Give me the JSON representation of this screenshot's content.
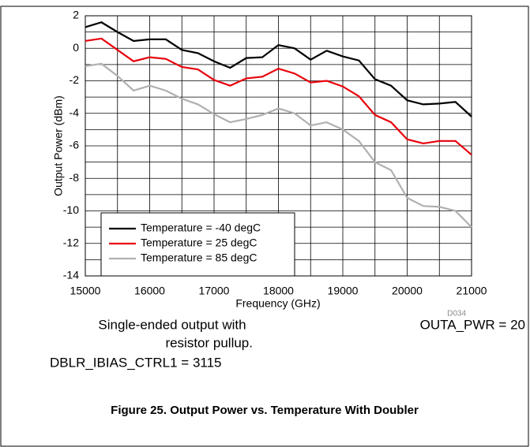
{
  "chart_data": {
    "type": "line",
    "xlabel": "Frequency (GHz)",
    "ylabel": "Output Power (dBm)",
    "x": [
      15000,
      15250,
      15500,
      15750,
      16000,
      16250,
      16500,
      16750,
      17000,
      17250,
      17500,
      17750,
      18000,
      18250,
      18500,
      18750,
      19000,
      19250,
      19500,
      19750,
      20000,
      20250,
      20500,
      20750,
      21000
    ],
    "series": [
      {
        "name": "Temperature = -40 degC",
        "color": "#000000",
        "values": [
          1.3,
          1.6,
          1.0,
          0.45,
          0.55,
          0.55,
          -0.1,
          -0.3,
          -0.8,
          -1.2,
          -0.6,
          -0.55,
          0.2,
          0.0,
          -0.7,
          -0.15,
          -0.5,
          -0.75,
          -1.9,
          -2.3,
          -3.2,
          -3.45,
          -3.4,
          -3.3,
          -4.2
        ]
      },
      {
        "name": "Temperature = 25 degC",
        "color": "#e8000b",
        "values": [
          0.45,
          0.6,
          -0.1,
          -0.8,
          -0.55,
          -0.65,
          -1.15,
          -1.3,
          -1.95,
          -2.3,
          -1.85,
          -1.75,
          -1.25,
          -1.55,
          -2.1,
          -2.0,
          -2.35,
          -2.95,
          -4.1,
          -4.55,
          -5.6,
          -5.85,
          -5.7,
          -5.7,
          -6.55
        ]
      },
      {
        "name": "Temperature = 85 degC",
        "color": "#b0b0b0",
        "values": [
          -1.1,
          -0.95,
          -1.7,
          -2.6,
          -2.3,
          -2.6,
          -3.1,
          -3.45,
          -4.05,
          -4.55,
          -4.35,
          -4.1,
          -3.7,
          -4.0,
          -4.75,
          -4.55,
          -5.0,
          -5.7,
          -7.0,
          -7.5,
          -9.2,
          -9.7,
          -9.75,
          -10.0,
          -11.0
        ]
      }
    ],
    "xlim": [
      15000,
      21000
    ],
    "xticks": [
      15000,
      16000,
      17000,
      18000,
      19000,
      20000,
      21000
    ],
    "xminorticks": [
      15500,
      16500,
      17500,
      18500,
      19500,
      20500
    ],
    "ylim": [
      -14,
      2
    ],
    "yticks": [
      -14,
      -12,
      -10,
      -8,
      -6,
      -4,
      -2,
      0,
      2
    ],
    "yminorticks": [
      -13,
      -11,
      -9,
      -7,
      -5,
      -3,
      -1,
      1
    ],
    "grid": true,
    "legend": "lower left",
    "figure_id": "D034",
    "notes": [
      "Single-ended output with",
      "resistor pullup.",
      "DBLR_IBIAS_CTRL1 = 3115",
      "OUTA_PWR = 20"
    ],
    "caption": "Figure 25. Output Power vs. Temperature With Doubler"
  }
}
